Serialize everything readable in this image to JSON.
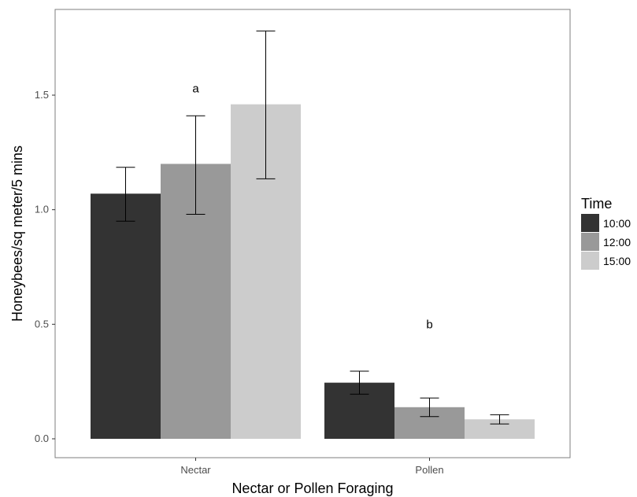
{
  "chart_data": {
    "type": "bar",
    "xlabel": "Nectar or Pollen Foraging",
    "ylabel": "Honeybees/sq meter/5 mins",
    "categories": [
      "Nectar",
      "Pollen"
    ],
    "ylim": [
      -0.03,
      1.88
    ],
    "yticks": [
      0.0,
      0.5,
      1.0,
      1.5
    ],
    "ytick_labels": [
      "0.0",
      "0.5",
      "1.0",
      "1.5"
    ],
    "grid": false,
    "legend": {
      "title": "Time",
      "placement": "right"
    },
    "series": [
      {
        "name": "10:00",
        "color": "#333333",
        "values": [
          1.07,
          0.245
        ],
        "err_low": [
          0.95,
          0.195
        ],
        "err_high": [
          1.185,
          0.295
        ]
      },
      {
        "name": "12:00",
        "color": "#999999",
        "values": [
          1.2,
          0.138
        ],
        "err_low": [
          0.98,
          0.097
        ],
        "err_high": [
          1.41,
          0.178
        ]
      },
      {
        "name": "15:00",
        "color": "#cccccc",
        "values": [
          1.46,
          0.085
        ],
        "err_low": [
          1.135,
          0.065
        ],
        "err_high": [
          1.78,
          0.105
        ]
      }
    ],
    "annotations": [
      {
        "text": "a",
        "category": "Nectar",
        "y": 1.53
      },
      {
        "text": "b",
        "category": "Pollen",
        "y": 0.5
      }
    ]
  }
}
